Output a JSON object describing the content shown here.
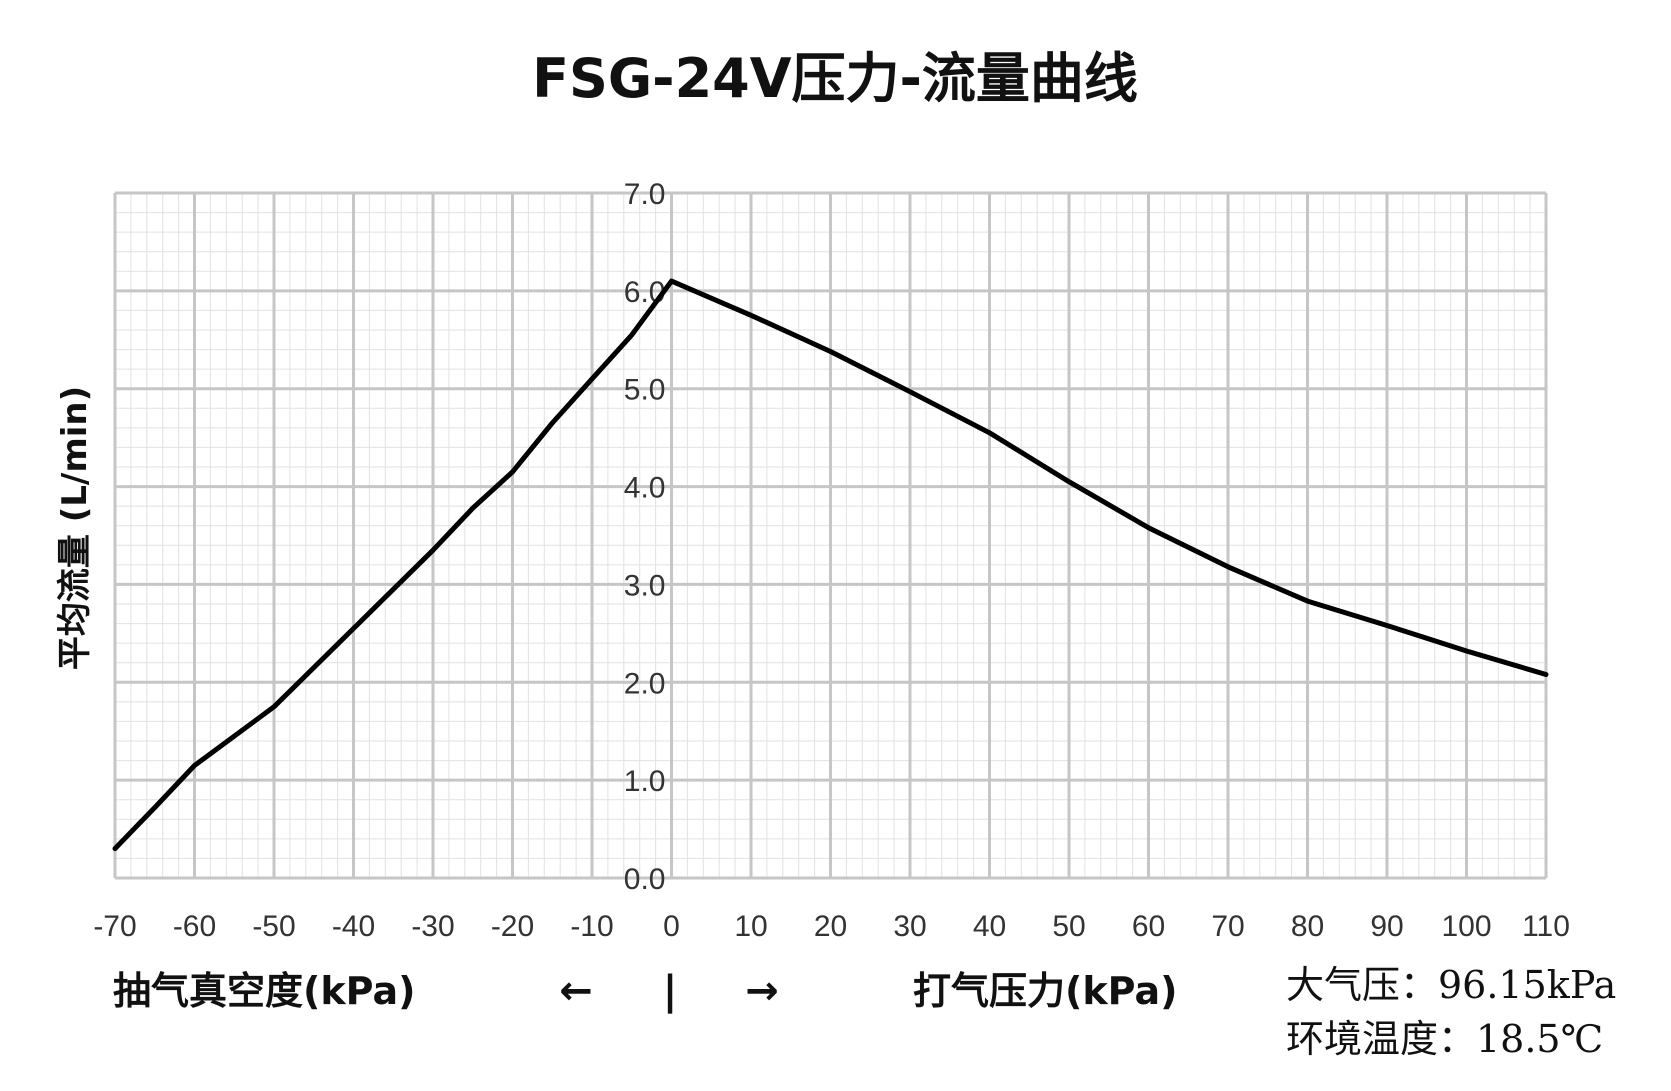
{
  "chart_data": {
    "type": "line",
    "title": "FSG-24V压力-流量曲线",
    "ylabel": "平均流量 (L/min)",
    "xlim": [
      -70,
      110
    ],
    "ylim": [
      0,
      7
    ],
    "x_ticks": [
      "-70",
      "-60",
      "-50",
      "-40",
      "-30",
      "-20",
      "-10",
      "0",
      "10",
      "20",
      "30",
      "40",
      "50",
      "60",
      "70",
      "80",
      "90",
      "100",
      "110"
    ],
    "y_ticks": [
      "0.0",
      "1.0",
      "2.0",
      "3.0",
      "4.0",
      "5.0",
      "6.0",
      "7.0"
    ],
    "grid": true,
    "series": [
      {
        "x": [
          -70,
          -65,
          -60,
          -55,
          -50,
          -45,
          -40,
          -35,
          -30,
          -25,
          -20,
          -15,
          -10,
          -5,
          0,
          10,
          20,
          30,
          40,
          45,
          50,
          60,
          70,
          80,
          90,
          100,
          110
        ],
        "y": [
          0.3,
          0.72,
          1.15,
          1.45,
          1.75,
          2.15,
          2.55,
          2.95,
          3.35,
          3.78,
          4.15,
          4.65,
          5.1,
          5.55,
          6.1,
          5.75,
          5.38,
          4.97,
          4.55,
          4.3,
          4.05,
          3.58,
          3.18,
          2.83,
          2.58,
          2.32,
          2.08
        ],
        "color": "#000000"
      }
    ],
    "x_left_caption": "抽气真空度(kPa)",
    "x_right_caption": "打气压力(kPa)",
    "arrow_left": "←",
    "divider": "|",
    "arrow_right": "→",
    "notes": [
      "大气压：96.15kPa",
      "环境温度：18.5℃"
    ]
  }
}
